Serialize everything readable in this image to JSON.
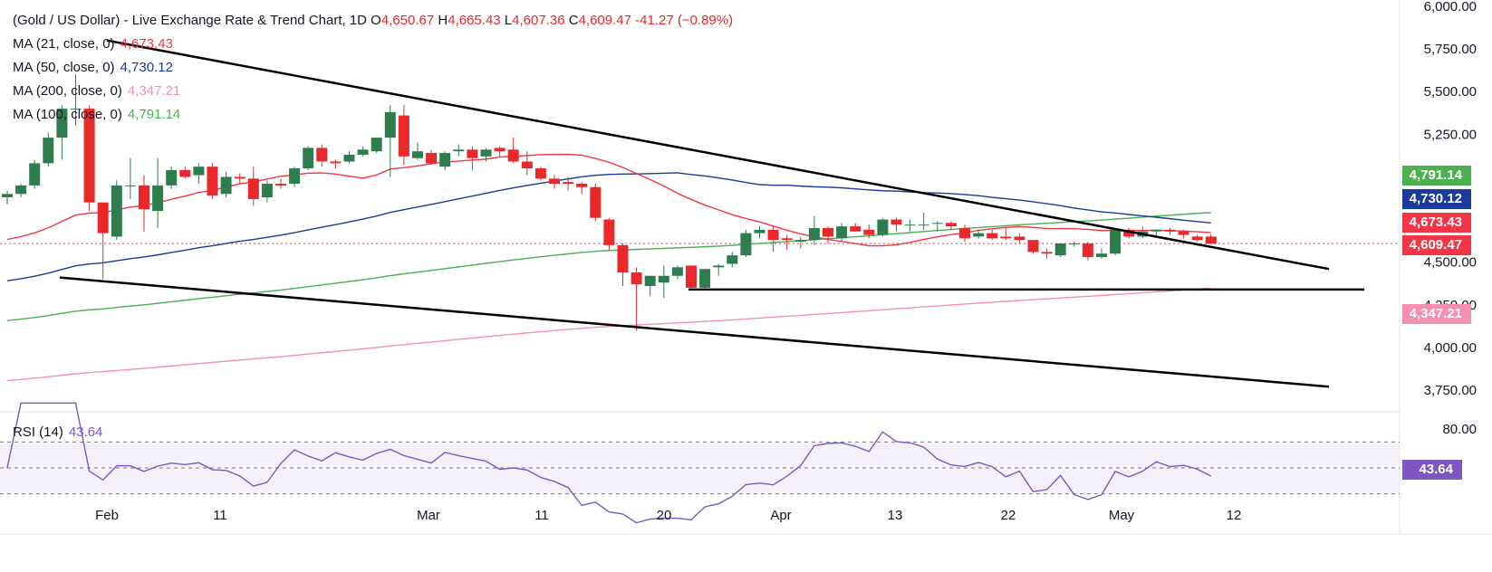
{
  "header": {
    "title": "(Gold / US Dollar) - Live Exchange Rate & Trend Chart, 1D",
    "o_label": "O",
    "o_value": "4,650.67",
    "h_label": "H",
    "h_value": "4,665.43",
    "l_label": "L",
    "l_value": "4,607.36",
    "c_label": "C",
    "c_value": "4,609.47",
    "change": "-41.27 (−0.89%)"
  },
  "legend": [
    {
      "label": "MA (21, close, 0)",
      "value": "4,673.43",
      "color": "#f23645"
    },
    {
      "label": "MA (50, close, 0)",
      "value": "4,730.12",
      "color": "#1a3a9c"
    },
    {
      "label": "MA (200, close, 0)",
      "value": "4,347.21",
      "color": "#f48fb1"
    },
    {
      "label": "MA (100, close, 0)",
      "value": "4,791.14",
      "color": "#4caf50"
    }
  ],
  "price_axis": [
    "6,000.00",
    "5,750.00",
    "5,500.00",
    "5,250.00",
    "4,500.00",
    "4,250.00",
    "4,000.00",
    "3,750.00"
  ],
  "price_labels": [
    {
      "value": "4,791.14",
      "color": "#4caf50"
    },
    {
      "value": "4,730.12",
      "color": "#1a3a9c"
    },
    {
      "value": "4,673.43",
      "color": "#f23645"
    },
    {
      "value": "4,609.47",
      "color": "#f23645"
    },
    {
      "value": "4,347.21",
      "color": "#f48fb1"
    }
  ],
  "x_axis": [
    "Feb",
    "11",
    "Mar",
    "11",
    "20",
    "Apr",
    "13",
    "22",
    "May",
    "12"
  ],
  "rsi": {
    "label": "RSI (14)",
    "value": "43.64",
    "axis_value": "80.00",
    "color": "#7e57c2"
  },
  "chart_data": {
    "type": "candlestick",
    "title": "(Gold / US Dollar) - Live Exchange Rate & Trend Chart, 1D",
    "ylim": [
      3700,
      6000
    ],
    "yticks": [
      6000,
      5750,
      5500,
      5250,
      4500,
      4250,
      4000,
      3750
    ],
    "xticks": [
      "Feb",
      "11",
      "Mar",
      "11",
      "20",
      "Apr",
      "13",
      "22",
      "May",
      "12"
    ],
    "candles": [
      [
        4880,
        4920,
        4840,
        4900
      ],
      [
        4900,
        4960,
        4880,
        4950
      ],
      [
        4950,
        5100,
        4930,
        5080
      ],
      [
        5080,
        5260,
        5060,
        5230
      ],
      [
        5230,
        5420,
        5100,
        5400
      ],
      [
        5400,
        5600,
        5300,
        5400
      ],
      [
        5400,
        5420,
        4800,
        4850
      ],
      [
        4850,
        4850,
        4400,
        4670
      ],
      [
        4650,
        4980,
        4630,
        4950
      ],
      [
        4950,
        5110,
        4870,
        4950
      ],
      [
        4950,
        5010,
        4680,
        4810
      ],
      [
        4800,
        5110,
        4700,
        4950
      ],
      [
        4950,
        5060,
        4930,
        5040
      ],
      [
        5040,
        5060,
        4990,
        5000
      ],
      [
        5010,
        5080,
        4960,
        5060
      ],
      [
        5060,
        5080,
        4870,
        4890
      ],
      [
        4900,
        5030,
        4880,
        5000
      ],
      [
        5000,
        5020,
        4960,
        4990
      ],
      [
        4990,
        5060,
        4830,
        4870
      ],
      [
        4880,
        4980,
        4850,
        4960
      ],
      [
        4960,
        4990,
        4930,
        4950
      ],
      [
        4960,
        5060,
        4940,
        5050
      ],
      [
        5050,
        5180,
        5040,
        5170
      ],
      [
        5170,
        5190,
        5060,
        5090
      ],
      [
        5090,
        5100,
        5050,
        5080
      ],
      [
        5090,
        5150,
        5080,
        5130
      ],
      [
        5130,
        5180,
        5120,
        5160
      ],
      [
        5150,
        5230,
        5140,
        5230
      ],
      [
        5230,
        5420,
        5000,
        5380
      ],
      [
        5360,
        5420,
        5070,
        5120
      ],
      [
        5110,
        5200,
        5100,
        5150
      ],
      [
        5140,
        5160,
        5070,
        5080
      ],
      [
        5060,
        5150,
        5040,
        5140
      ],
      [
        5150,
        5190,
        5120,
        5160
      ],
      [
        5160,
        5180,
        5040,
        5110
      ],
      [
        5120,
        5170,
        5090,
        5160
      ],
      [
        5170,
        5180,
        5120,
        5150
      ],
      [
        5160,
        5230,
        5080,
        5090
      ],
      [
        5090,
        5150,
        5010,
        5050
      ],
      [
        5050,
        5060,
        4980,
        4990
      ],
      [
        4990,
        5010,
        4930,
        4960
      ],
      [
        4970,
        5000,
        4920,
        4960
      ],
      [
        4960,
        4970,
        4900,
        4940
      ],
      [
        4940,
        4960,
        4740,
        4760
      ],
      [
        4750,
        4760,
        4570,
        4600
      ],
      [
        4600,
        4610,
        4360,
        4440
      ],
      [
        4440,
        4470,
        4100,
        4370
      ],
      [
        4360,
        4410,
        4300,
        4420
      ],
      [
        4380,
        4480,
        4290,
        4420
      ],
      [
        4420,
        4480,
        4400,
        4470
      ],
      [
        4480,
        4480,
        4340,
        4350
      ],
      [
        4350,
        4460,
        4340,
        4460
      ],
      [
        4470,
        4490,
        4420,
        4480
      ],
      [
        4490,
        4560,
        4470,
        4540
      ],
      [
        4540,
        4690,
        4530,
        4670
      ],
      [
        4670,
        4710,
        4640,
        4690
      ],
      [
        4690,
        4710,
        4560,
        4630
      ],
      [
        4640,
        4660,
        4570,
        4630
      ],
      [
        4620,
        4650,
        4580,
        4630
      ],
      [
        4630,
        4770,
        4600,
        4700
      ],
      [
        4700,
        4710,
        4610,
        4650
      ],
      [
        4640,
        4730,
        4620,
        4710
      ],
      [
        4710,
        4730,
        4680,
        4680
      ],
      [
        4690,
        4720,
        4640,
        4660
      ],
      [
        4660,
        4760,
        4650,
        4750
      ],
      [
        4750,
        4760,
        4680,
        4720
      ],
      [
        4720,
        4750,
        4680,
        4720
      ],
      [
        4720,
        4790,
        4690,
        4720
      ],
      [
        4730,
        4740,
        4680,
        4730
      ],
      [
        4730,
        4740,
        4690,
        4710
      ],
      [
        4700,
        4720,
        4620,
        4640
      ],
      [
        4650,
        4690,
        4640,
        4670
      ],
      [
        4670,
        4690,
        4630,
        4640
      ],
      [
        4650,
        4700,
        4630,
        4640
      ],
      [
        4650,
        4670,
        4610,
        4630
      ],
      [
        4630,
        4630,
        4550,
        4560
      ],
      [
        4560,
        4580,
        4520,
        4550
      ],
      [
        4540,
        4610,
        4530,
        4610
      ],
      [
        4610,
        4620,
        4590,
        4610
      ],
      [
        4610,
        4620,
        4510,
        4530
      ],
      [
        4530,
        4580,
        4520,
        4550
      ],
      [
        4550,
        4700,
        4540,
        4690
      ],
      [
        4690,
        4700,
        4640,
        4650
      ],
      [
        4650,
        4710,
        4640,
        4680
      ],
      [
        4680,
        4690,
        4650,
        4690
      ],
      [
        4690,
        4700,
        4660,
        4680
      ],
      [
        4680,
        4690,
        4640,
        4660
      ],
      [
        4650,
        4660,
        4620,
        4630
      ],
      [
        4650,
        4665,
        4607,
        4609
      ]
    ],
    "series": [
      {
        "name": "MA (21, close, 0)",
        "color": "#f23645",
        "last": 4673.43
      },
      {
        "name": "MA (50, close, 0)",
        "color": "#1a3a9c",
        "last": 4730.12
      },
      {
        "name": "MA (200, close, 0)",
        "color": "#f48fb1",
        "last": 4347.21
      },
      {
        "name": "MA (100, close, 0)",
        "color": "#4caf50",
        "last": 4791.14
      }
    ],
    "rsi": {
      "name": "RSI (14)",
      "last": 43.64,
      "axis_tick": 80
    }
  }
}
